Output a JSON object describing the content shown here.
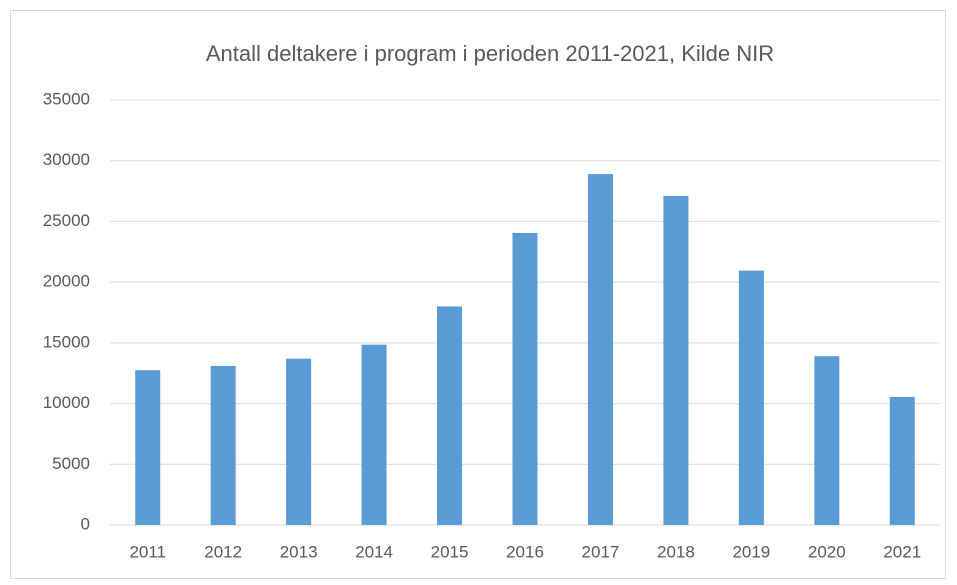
{
  "chart_data": {
    "type": "bar",
    "title": "Antall deltakere i program i perioden 2011-2021, Kilde NIR",
    "categories": [
      "2011",
      "2012",
      "2013",
      "2014",
      "2015",
      "2016",
      "2017",
      "2018",
      "2019",
      "2020",
      "2021"
    ],
    "values": [
      12750,
      13100,
      13700,
      14850,
      18000,
      24050,
      28900,
      27100,
      20950,
      13900,
      10550
    ],
    "color": "#5b9bd5",
    "ylim": [
      0,
      35000
    ],
    "yticks": [
      0,
      5000,
      10000,
      15000,
      20000,
      25000,
      30000,
      35000
    ],
    "grid": true
  }
}
